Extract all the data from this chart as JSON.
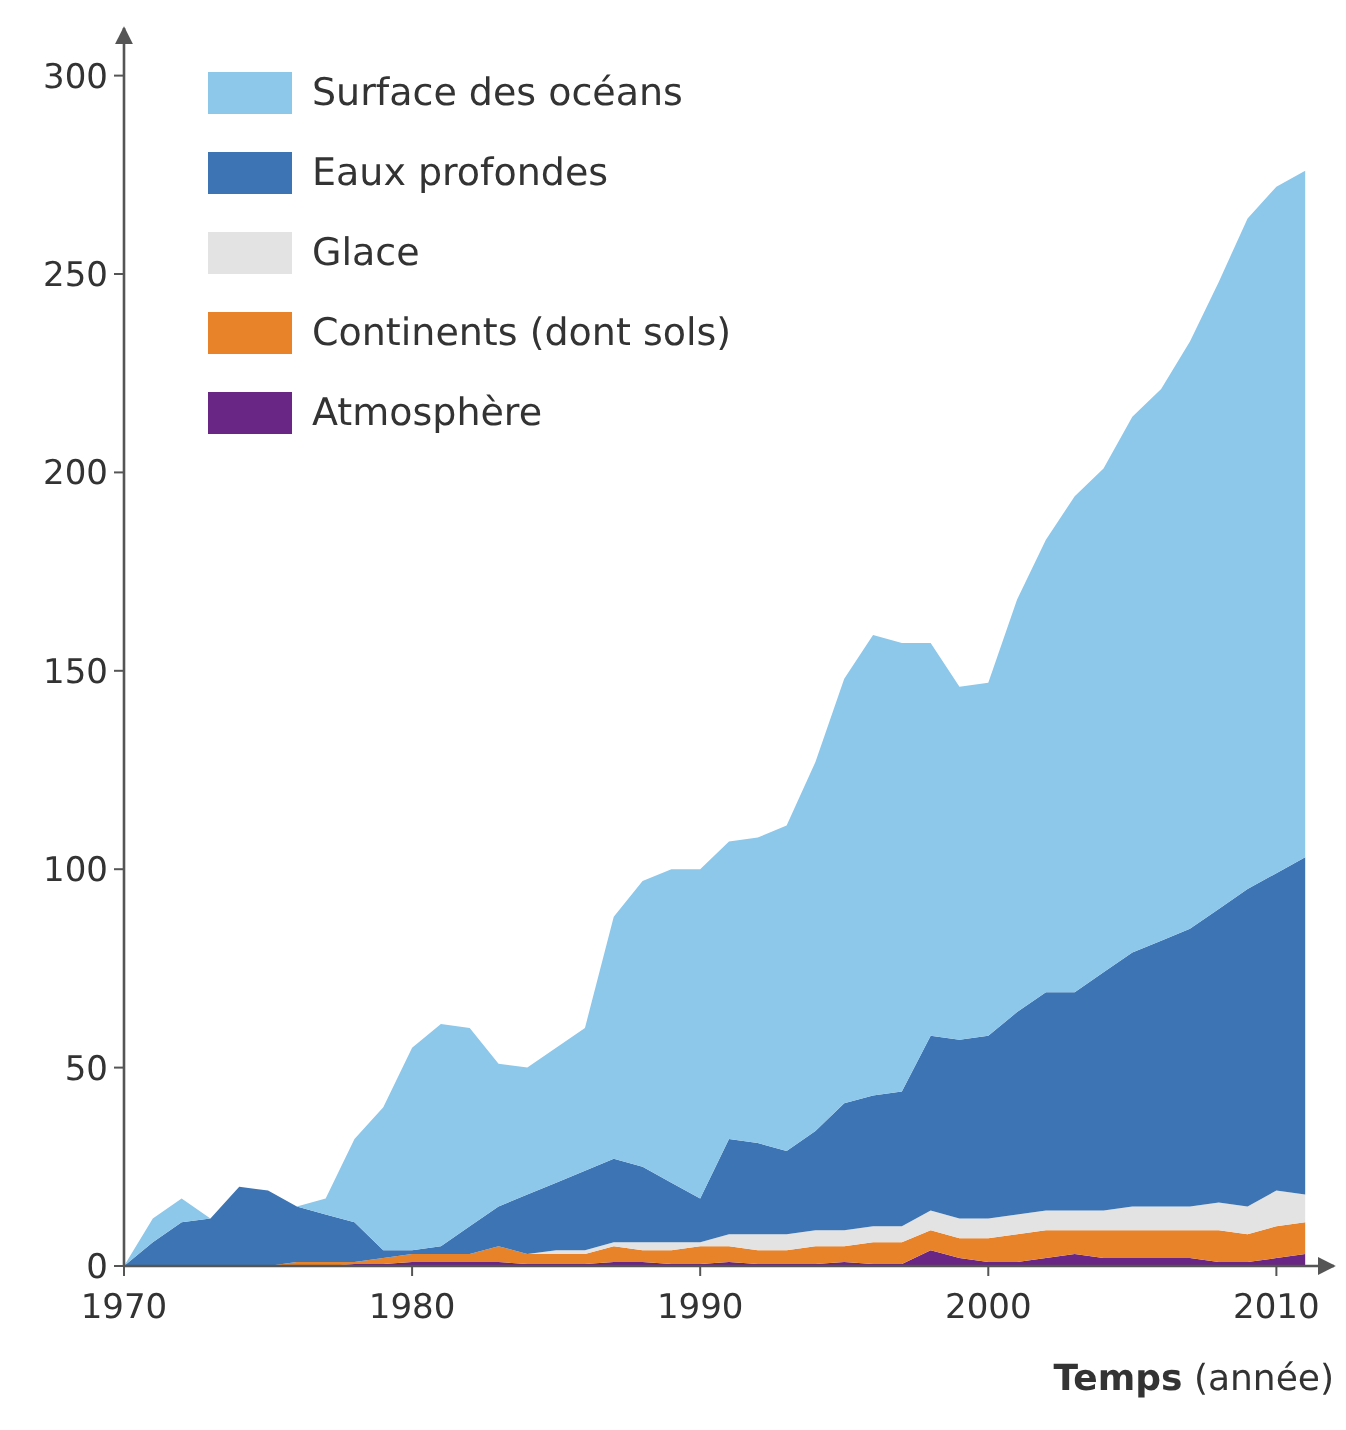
{
  "chart_data": {
    "type": "area",
    "stacked": true,
    "xlabel": "Temps (année)",
    "x": [
      1970,
      1971,
      1972,
      1973,
      1974,
      1975,
      1976,
      1977,
      1978,
      1979,
      1980,
      1981,
      1982,
      1983,
      1984,
      1985,
      1986,
      1987,
      1988,
      1989,
      1990,
      1991,
      1992,
      1993,
      1994,
      1995,
      1996,
      1997,
      1998,
      1999,
      2000,
      2001,
      2002,
      2003,
      2004,
      2005,
      2006,
      2007,
      2008,
      2009,
      2010,
      2011
    ],
    "series": [
      {
        "name": "Atmosphère",
        "color": "#6a2684",
        "values": [
          0,
          0,
          0,
          0,
          0,
          0,
          0,
          0,
          0.5,
          0.5,
          1,
          1,
          1,
          1,
          0.5,
          0.5,
          0.5,
          1,
          1,
          0.5,
          0.5,
          1,
          0.5,
          0.5,
          0.5,
          1,
          0.5,
          0.5,
          4,
          2,
          1,
          1,
          2,
          3,
          2,
          2,
          2,
          2,
          1,
          1,
          2,
          3
        ]
      },
      {
        "name": "Continents (dont sols)",
        "color": "#e8832a",
        "values": [
          0,
          0,
          0,
          0,
          0,
          0,
          1,
          1,
          0.5,
          1.5,
          2,
          2,
          2,
          4,
          2.5,
          2.5,
          2.5,
          4,
          3,
          3.5,
          4.5,
          4,
          3.5,
          3.5,
          4.5,
          4,
          5.5,
          5.5,
          5,
          5,
          6,
          7,
          7,
          6,
          7,
          7,
          7,
          7,
          8,
          7,
          8,
          8
        ]
      },
      {
        "name": "Glace",
        "color": "#e3e3e3",
        "values": [
          0,
          0,
          0,
          0,
          0,
          0,
          0,
          0,
          0,
          0,
          0,
          0,
          0,
          0,
          0,
          1,
          1,
          1,
          2,
          2,
          1,
          3,
          4,
          4,
          4,
          4,
          4,
          4,
          5,
          5,
          5,
          5,
          5,
          5,
          5,
          6,
          6,
          6,
          7,
          7,
          9,
          7
        ]
      },
      {
        "name": "Eaux profondes",
        "color": "#3d74b4",
        "values": [
          0,
          6,
          11,
          12,
          20,
          19,
          14,
          12,
          10,
          2,
          1,
          2,
          7,
          10,
          15,
          17,
          20,
          21,
          19,
          15,
          11,
          24,
          23,
          21,
          25,
          32,
          33,
          34,
          44,
          45,
          46,
          51,
          55,
          55,
          60,
          64,
          67,
          70,
          74,
          80,
          80,
          85
        ]
      },
      {
        "name": "Surface des océans",
        "color": "#8dc7ea",
        "values": [
          0,
          6,
          6,
          0,
          0,
          0,
          0,
          4,
          21,
          36,
          51,
          56,
          50,
          36,
          32,
          34,
          36,
          61,
          72,
          79,
          83,
          75,
          77,
          82,
          93,
          107,
          116,
          113,
          99,
          89,
          89,
          104,
          114,
          125,
          127,
          135,
          139,
          148,
          158,
          169,
          173,
          173
        ]
      }
    ],
    "xlim": [
      1970,
      2012
    ],
    "ylim": [
      0,
      312
    ],
    "xticks": [
      1970,
      1980,
      1990,
      2000,
      2010
    ],
    "yticks": [
      0,
      50,
      100,
      150,
      200,
      250,
      300
    ],
    "grid": false,
    "legend": "top left"
  }
}
